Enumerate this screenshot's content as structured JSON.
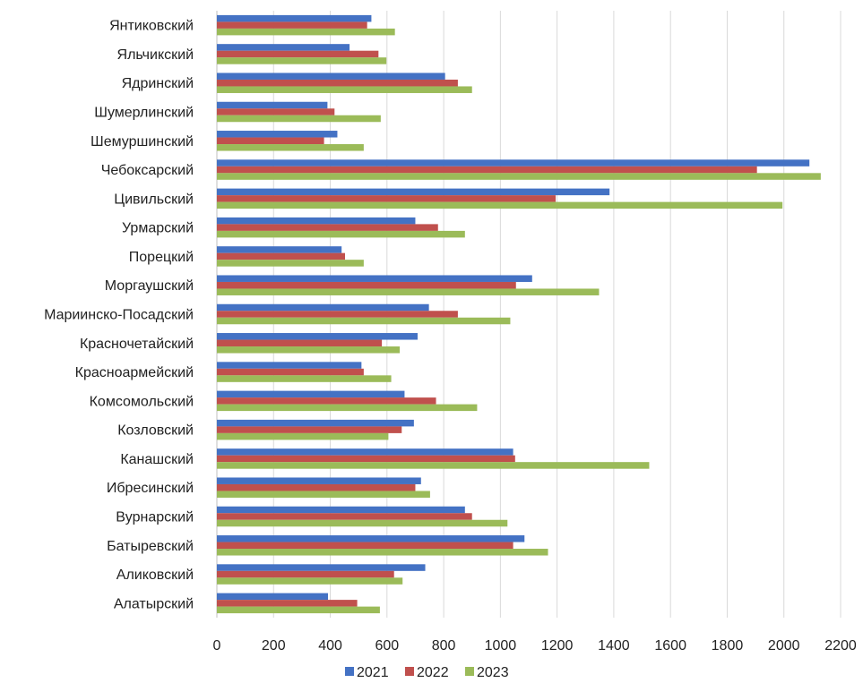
{
  "chart_data": {
    "type": "bar",
    "orientation": "horizontal",
    "categories": [
      "Янтиковский",
      "Яльчикский",
      "Ядринский",
      "Шумерлинский",
      "Шемуршинский",
      "Чебоксарский",
      "Цивильский",
      "Урмарский",
      "Порецкий",
      "Моргаушский",
      "Мариинско-Посадский",
      "Красночетайский",
      "Красноармейский",
      "Комсомольский",
      "Козловский",
      "Канашский",
      "Ибресинский",
      "Вурнарский",
      "Батыревский",
      "Аликовский",
      "Алатырский"
    ],
    "series": [
      {
        "name": "2021",
        "color": "#4472C4",
        "values": [
          545,
          468,
          805,
          390,
          425,
          2090,
          1385,
          700,
          440,
          1112,
          748,
          708,
          510,
          662,
          695,
          1045,
          720,
          875,
          1085,
          735,
          392
        ]
      },
      {
        "name": "2022",
        "color": "#C0504D",
        "values": [
          530,
          570,
          850,
          415,
          378,
          1905,
          1195,
          780,
          452,
          1055,
          850,
          582,
          518,
          773,
          652,
          1052,
          700,
          900,
          1045,
          625,
          495
        ]
      },
      {
        "name": "2023",
        "color": "#9BBB59",
        "values": [
          628,
          598,
          900,
          578,
          518,
          2130,
          1995,
          875,
          518,
          1348,
          1035,
          645,
          615,
          918,
          605,
          1525,
          752,
          1025,
          1168,
          655,
          575
        ]
      }
    ],
    "xlim": [
      0,
      2200
    ],
    "x_ticks": [
      "0",
      "200",
      "400",
      "600",
      "800",
      "1000",
      "1200",
      "1400",
      "1600",
      "1800",
      "2000",
      "2200"
    ],
    "grid": "vertical",
    "legend_position": "bottom"
  }
}
